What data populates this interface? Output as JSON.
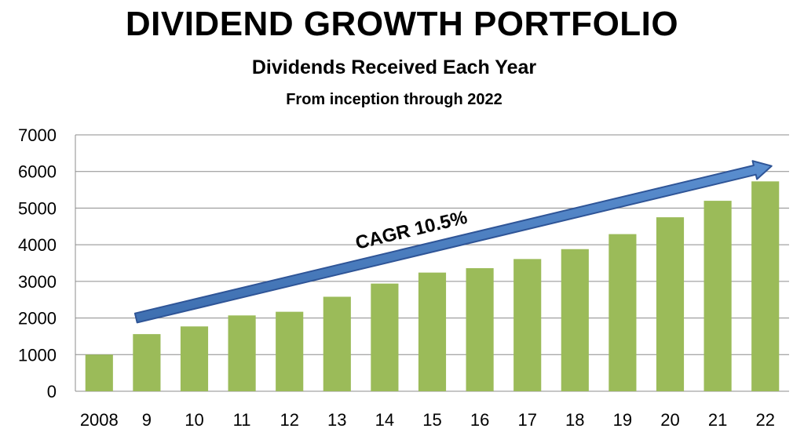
{
  "chart_data": {
    "type": "bar",
    "title": "DIVIDEND GROWTH PORTFOLIO",
    "subtitle": "Dividends Received Each Year",
    "subtitle2": "From inception through 2022",
    "categories": [
      "2008",
      "9",
      "10",
      "11",
      "12",
      "13",
      "14",
      "15",
      "16",
      "17",
      "18",
      "19",
      "20",
      "21",
      "22"
    ],
    "values": [
      1000,
      1560,
      1770,
      2070,
      2170,
      2580,
      2940,
      3240,
      3360,
      3610,
      3880,
      4290,
      4750,
      5200,
      5730
    ],
    "ylim": [
      0,
      7000
    ],
    "yticks": [
      "0",
      "1000",
      "2000",
      "3000",
      "4000",
      "5000",
      "6000",
      "7000"
    ],
    "grid": true,
    "bar_color": "#9BBB59",
    "annotation": {
      "text": "CAGR 10.5%",
      "arrow_color": "#4F81BD"
    }
  }
}
